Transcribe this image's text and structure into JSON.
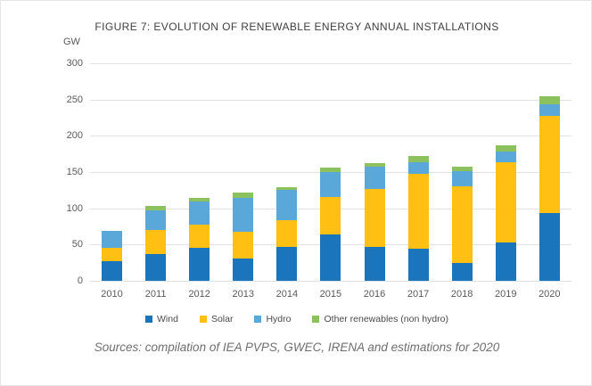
{
  "figure": {
    "title": "FIGURE 7: EVOLUTION OF RENEWABLE ENERGY ANNUAL INSTALLATIONS",
    "unit_label": "GW",
    "source_note": "Sources: compilation of IEA PVPS, GWEC, IRENA and estimations for 2020"
  },
  "colors": {
    "wind": "#1b75bc",
    "solar": "#ffc013",
    "hydro": "#5aa7da",
    "other": "#8bc25e",
    "gridline": "#e2e2e2",
    "axis_text": "#595959",
    "title_text": "#404040",
    "source_text": "#6f6f6f"
  },
  "chart_data": {
    "type": "bar",
    "stacked": true,
    "title": "FIGURE 7: EVOLUTION OF RENEWABLE ENERGY ANNUAL INSTALLATIONS",
    "ylabel": "GW",
    "ylim": [
      0,
      300
    ],
    "ytick_interval": 50,
    "yticks": [
      0,
      50,
      100,
      150,
      200,
      250,
      300
    ],
    "grid": true,
    "legend_position": "bottom",
    "categories": [
      "2010",
      "2011",
      "2012",
      "2013",
      "2014",
      "2015",
      "2016",
      "2017",
      "2018",
      "2019",
      "2020"
    ],
    "series": [
      {
        "name": "Wind",
        "color_key": "wind",
        "values": [
          27,
          37,
          46,
          31,
          47,
          64,
          47,
          44,
          25,
          53,
          93
        ]
      },
      {
        "name": "Solar",
        "color_key": "solar",
        "values": [
          19,
          33,
          31,
          37,
          37,
          52,
          80,
          104,
          105,
          111,
          135
        ]
      },
      {
        "name": "Hydro",
        "color_key": "hydro",
        "values": [
          23,
          27,
          32,
          47,
          41,
          34,
          30,
          16,
          21,
          14,
          16
        ]
      },
      {
        "name": "Other renewables (non hydro)",
        "color_key": "other",
        "values": [
          0,
          6,
          5,
          7,
          4,
          6,
          5,
          8,
          7,
          9,
          11
        ]
      }
    ],
    "totals": [
      69,
      103,
      114,
      122,
      129,
      156,
      162,
      172,
      158,
      187,
      255
    ]
  }
}
